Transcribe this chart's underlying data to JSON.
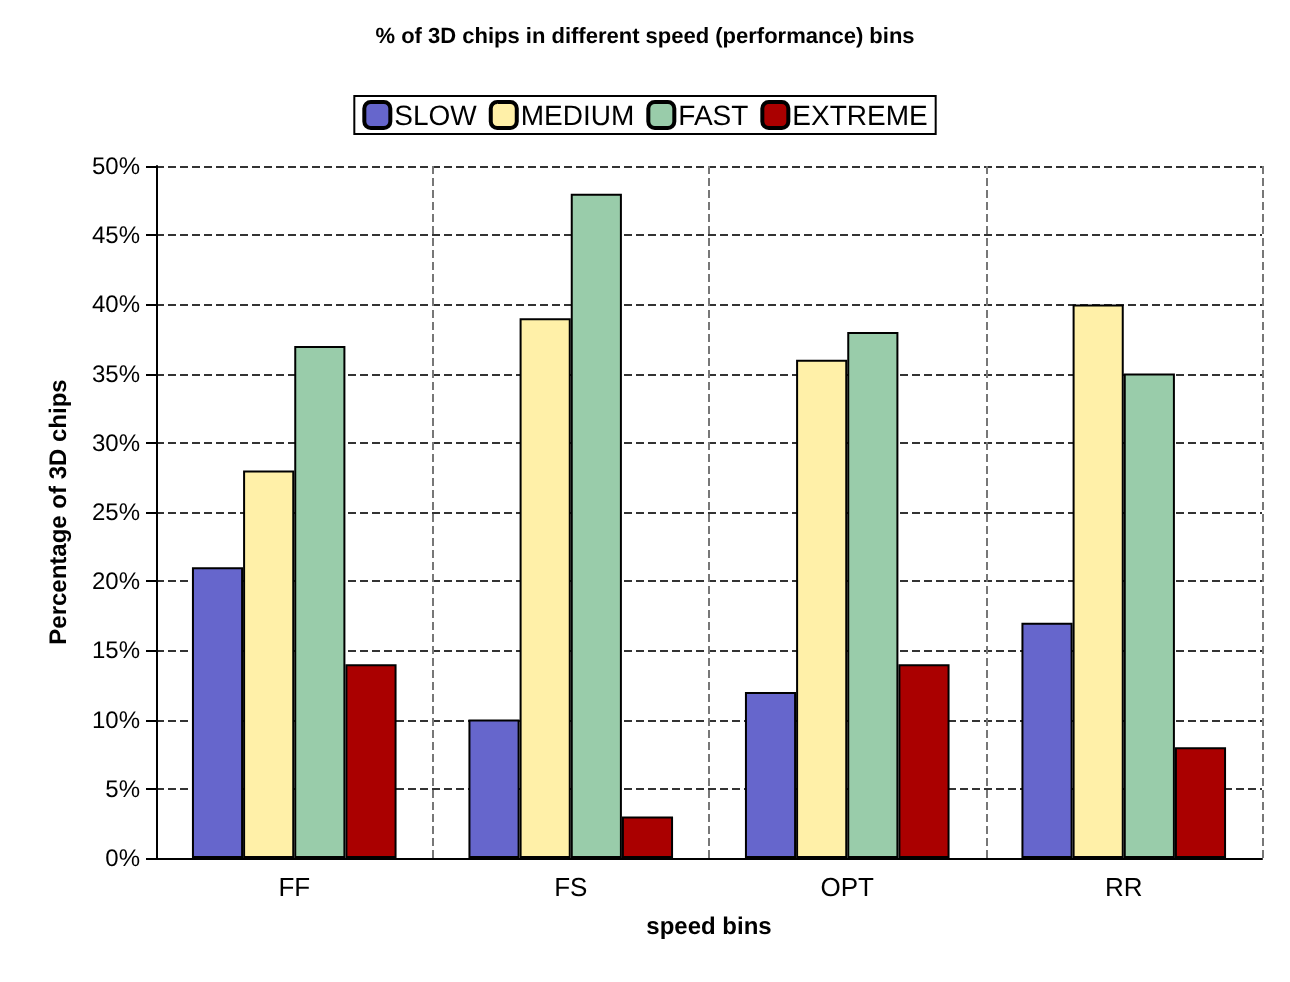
{
  "chart_data": {
    "type": "bar",
    "title": "% of 3D chips in different speed (performance) bins",
    "xlabel": "speed bins",
    "ylabel": "Percentage of 3D chips",
    "categories": [
      "FF",
      "FS",
      "OPT",
      "RR"
    ],
    "series": [
      {
        "name": "SLOW",
        "color": "#6666cc",
        "values": [
          21,
          10,
          12,
          17
        ]
      },
      {
        "name": "MEDIUM",
        "color": "#fff0a8",
        "values": [
          28,
          39,
          36,
          40
        ]
      },
      {
        "name": "FAST",
        "color": "#99ccaa",
        "values": [
          37,
          48,
          38,
          35
        ]
      },
      {
        "name": "EXTREME",
        "color": "#aa0000",
        "values": [
          14,
          3,
          14,
          8
        ]
      }
    ],
    "ylim": [
      0,
      50
    ],
    "yticks": [
      {
        "value": 0,
        "label": "0%"
      },
      {
        "value": 5,
        "label": "5%"
      },
      {
        "value": 10,
        "label": "10%"
      },
      {
        "value": 15,
        "label": "15%"
      },
      {
        "value": 20,
        "label": "20%"
      },
      {
        "value": 25,
        "label": "25%"
      },
      {
        "value": 30,
        "label": "30%"
      },
      {
        "value": 35,
        "label": "35%"
      },
      {
        "value": 40,
        "label": "40%"
      },
      {
        "value": 45,
        "label": "45%"
      },
      {
        "value": 50,
        "label": "50%"
      }
    ],
    "grid": true,
    "legend": "top"
  }
}
